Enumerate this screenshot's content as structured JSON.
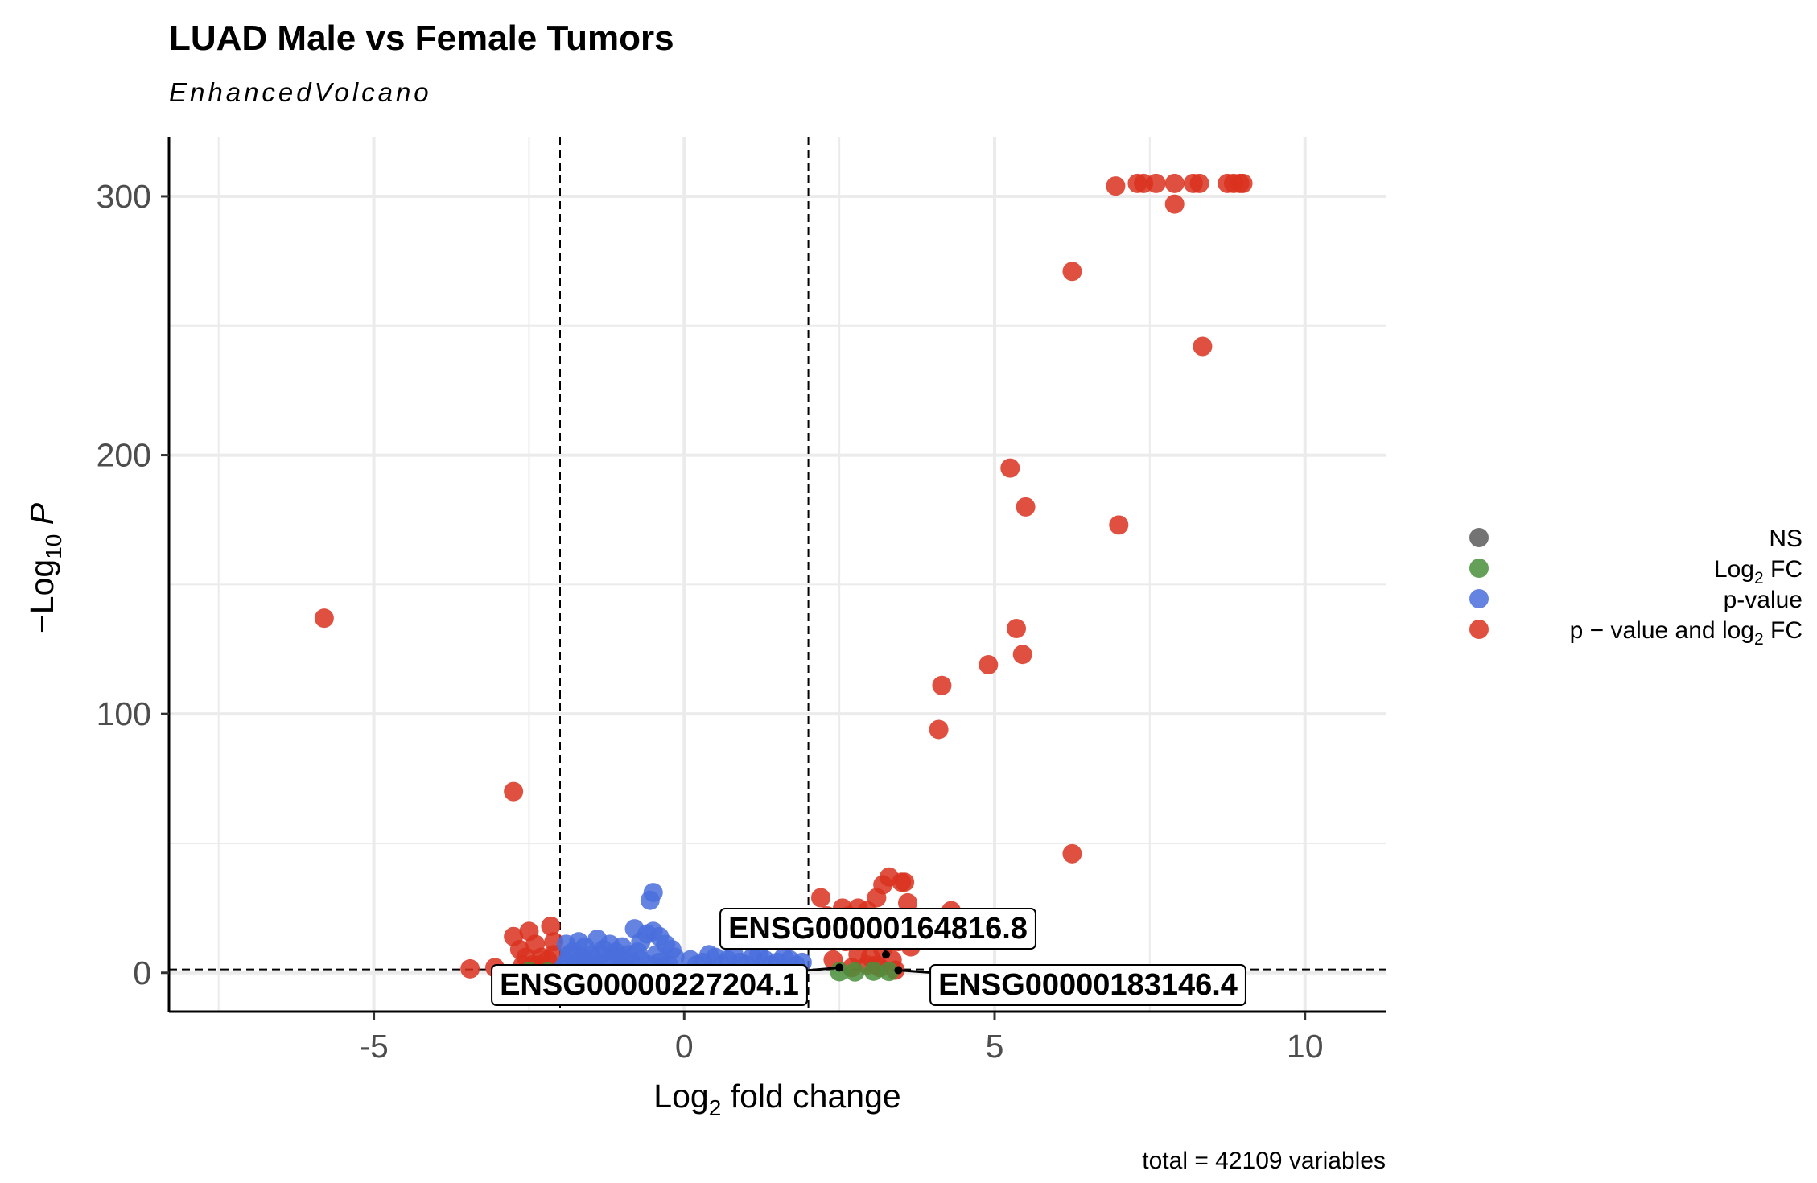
{
  "chart_data": {
    "type": "scatter",
    "title": "LUAD Male vs Female Tumors",
    "subtitle": "EnhancedVolcano",
    "xlabel": {
      "base": "Log",
      "sub": "2",
      "rest": " fold change"
    },
    "ylabel": {
      "pre": "−Log",
      "sub": "10",
      "italic": "P"
    },
    "caption": "total = 42109 variables",
    "xlim": [
      -8.3,
      11.3
    ],
    "ylim": [
      -15,
      323
    ],
    "x_ticks": [
      {
        "value": -5,
        "label": "-5"
      },
      {
        "value": 0,
        "label": "0"
      },
      {
        "value": 5,
        "label": "5"
      },
      {
        "value": 10,
        "label": "10"
      }
    ],
    "y_ticks": [
      {
        "value": 0,
        "label": "0"
      },
      {
        "value": 100,
        "label": "100"
      },
      {
        "value": 200,
        "label": "200"
      },
      {
        "value": 300,
        "label": "300"
      }
    ],
    "grid": true,
    "thresholds": {
      "log2fc": [
        -2,
        2
      ],
      "neg_log10_p": 1.3
    },
    "legend": {
      "position": "right",
      "entries": [
        {
          "key": "ns",
          "label": "NS",
          "color": "#5a5a5a"
        },
        {
          "key": "fc",
          "label": "Log",
          "sub": "2",
          "rest": " FC",
          "color": "#4a8f3c"
        },
        {
          "key": "p",
          "label": "p-value",
          "color": "#4a6fdc"
        },
        {
          "key": "both",
          "label": "p − value and log",
          "sub": "2",
          "rest": " FC",
          "color": "#d9311f"
        }
      ]
    },
    "series": [
      {
        "key": "both",
        "points": [
          [
            -5.8,
            137
          ],
          [
            -2.75,
            70
          ],
          [
            -3.45,
            1.5
          ],
          [
            -2.75,
            14
          ],
          [
            -2.5,
            16
          ],
          [
            -2.65,
            9
          ],
          [
            -2.4,
            11
          ],
          [
            -2.3,
            6
          ],
          [
            -2.55,
            6
          ],
          [
            -2.15,
            18
          ],
          [
            -2.1,
            12
          ],
          [
            -2.45,
            3
          ],
          [
            -2.2,
            5
          ],
          [
            -3.05,
            2
          ],
          [
            -2.35,
            3
          ],
          [
            -2.1,
            7
          ],
          [
            -2.6,
            3
          ],
          [
            2.2,
            29
          ],
          [
            2.3,
            22
          ],
          [
            2.45,
            20
          ],
          [
            2.55,
            25
          ],
          [
            2.65,
            22
          ],
          [
            2.8,
            25
          ],
          [
            2.95,
            24
          ],
          [
            3.1,
            29
          ],
          [
            3.2,
            34
          ],
          [
            3.3,
            37
          ],
          [
            3.5,
            35
          ],
          [
            3.55,
            35
          ],
          [
            3.6,
            27
          ],
          [
            4.3,
            24
          ],
          [
            2.6,
            12
          ],
          [
            2.8,
            7
          ],
          [
            3.0,
            6
          ],
          [
            3.1,
            3
          ],
          [
            3.2,
            9
          ],
          [
            3.35,
            5
          ],
          [
            3.45,
            12
          ],
          [
            2.7,
            2
          ],
          [
            2.95,
            3
          ],
          [
            3.15,
            2
          ],
          [
            2.5,
            16
          ],
          [
            2.9,
            14
          ],
          [
            3.3,
            17
          ],
          [
            3.65,
            10
          ],
          [
            2.4,
            5
          ],
          [
            3.4,
            1
          ],
          [
            4.1,
            94
          ],
          [
            4.15,
            111
          ],
          [
            4.9,
            119
          ],
          [
            5.35,
            133
          ],
          [
            5.45,
            123
          ],
          [
            5.25,
            195
          ],
          [
            5.5,
            180
          ],
          [
            7.0,
            173
          ],
          [
            6.25,
            46
          ],
          [
            6.25,
            271
          ],
          [
            8.35,
            242
          ],
          [
            6.95,
            304
          ],
          [
            7.3,
            305
          ],
          [
            7.4,
            305
          ],
          [
            7.6,
            305
          ],
          [
            7.9,
            305
          ],
          [
            8.2,
            305
          ],
          [
            8.3,
            305
          ],
          [
            8.75,
            305
          ],
          [
            8.85,
            305
          ],
          [
            8.95,
            305
          ],
          [
            9.0,
            305
          ],
          [
            7.9,
            297
          ]
        ]
      },
      {
        "key": "fc",
        "points": [
          [
            2.5,
            0.4
          ],
          [
            2.75,
            0.3
          ],
          [
            3.05,
            0.6
          ],
          [
            3.3,
            0.5
          ],
          [
            -2.2,
            0.3
          ],
          [
            -2.5,
            0.5
          ]
        ]
      },
      {
        "key": "p",
        "points": [
          [
            -1.9,
            11
          ],
          [
            -1.8,
            8
          ],
          [
            -1.7,
            12
          ],
          [
            -1.6,
            10
          ],
          [
            -1.5,
            7
          ],
          [
            -1.4,
            13
          ],
          [
            -1.3,
            9
          ],
          [
            -1.2,
            11
          ],
          [
            -1.1,
            8
          ],
          [
            -1.0,
            10
          ],
          [
            -0.9,
            7
          ],
          [
            -0.8,
            17
          ],
          [
            -0.7,
            12
          ],
          [
            -0.6,
            15
          ],
          [
            -0.5,
            16
          ],
          [
            -0.4,
            14
          ],
          [
            -0.3,
            11
          ],
          [
            -0.5,
            31
          ],
          [
            -0.55,
            28
          ],
          [
            -1.9,
            4
          ],
          [
            -1.75,
            3
          ],
          [
            -1.6,
            5
          ],
          [
            -1.45,
            3
          ],
          [
            -1.3,
            4
          ],
          [
            -1.15,
            5
          ],
          [
            -1.0,
            3
          ],
          [
            -0.85,
            4
          ],
          [
            -0.7,
            5
          ],
          [
            -0.55,
            3
          ],
          [
            -0.4,
            4
          ],
          [
            -0.25,
            3
          ],
          [
            -0.15,
            6
          ],
          [
            -1.85,
            7
          ],
          [
            -1.65,
            6
          ],
          [
            -1.35,
            7
          ],
          [
            -1.05,
            6
          ],
          [
            -0.75,
            8
          ],
          [
            -0.45,
            7
          ],
          [
            -0.2,
            9
          ],
          [
            0.1,
            5
          ],
          [
            0.3,
            4
          ],
          [
            0.5,
            6
          ],
          [
            0.7,
            5
          ],
          [
            0.9,
            4
          ],
          [
            1.1,
            6
          ],
          [
            1.3,
            5
          ],
          [
            1.5,
            4
          ],
          [
            1.7,
            5
          ],
          [
            1.9,
            4
          ],
          [
            0.2,
            3
          ],
          [
            0.6,
            3
          ],
          [
            1.0,
            3
          ],
          [
            1.4,
            3
          ],
          [
            1.8,
            3
          ],
          [
            0.4,
            7
          ],
          [
            0.8,
            7
          ],
          [
            1.2,
            7
          ],
          [
            1.6,
            6
          ],
          [
            -1.95,
            2
          ],
          [
            -1.5,
            2
          ],
          [
            -0.95,
            2
          ],
          [
            -0.35,
            2
          ]
        ]
      }
    ],
    "labels": [
      {
        "text": "ENSG00000164816.8",
        "point": [
          3.25,
          7
        ]
      },
      {
        "text": "ENSG00000227204.1",
        "point": [
          2.5,
          2
        ]
      },
      {
        "text": "ENSG00000183146.4",
        "point": [
          3.45,
          1
        ]
      }
    ]
  }
}
